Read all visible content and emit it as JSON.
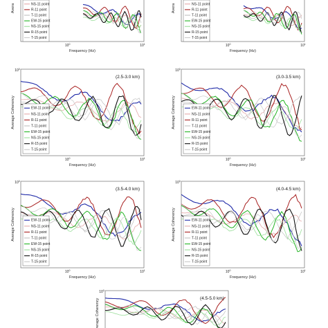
{
  "series_legend": [
    {
      "name": "EW-11 point",
      "color": "#1f2aa8"
    },
    {
      "name": "NS-11 point",
      "color": "#e3a9a9"
    },
    {
      "name": "R-11 point",
      "color": "#a82020"
    },
    {
      "name": "T-11 point",
      "color": "#bfbfbf"
    },
    {
      "name": "EW-15 point",
      "color": "#22b422"
    },
    {
      "name": "NS-15 point",
      "color": "#9adf9a"
    },
    {
      "name": "R-15 point",
      "color": "#111111"
    },
    {
      "name": "T-15 point",
      "color": "#c8c8c8"
    }
  ],
  "common": {
    "xlabel": "Frequency (Hz)",
    "ylabel_full": "Average Coherency",
    "ylabel_cut": "Avera",
    "ytick_top": "10",
    "ytick_top_exp": "0",
    "xtick_mid": "10",
    "xtick_mid_exp": "0",
    "xtick_right": "10",
    "xtick_right_exp": "1"
  },
  "chart_data": [
    {
      "id": "p1",
      "type": "line",
      "range_label": "",
      "x_scale": "log",
      "y_scale": "log",
      "partial": "top-cut"
    },
    {
      "id": "p2",
      "type": "line",
      "range_label": "",
      "x_scale": "log",
      "y_scale": "log",
      "partial": "top-cut"
    },
    {
      "id": "p3",
      "type": "line",
      "range_label": "(2.5-3.0 km)",
      "x_scale": "log",
      "y_scale": "log"
    },
    {
      "id": "p4",
      "type": "line",
      "range_label": "(3.0-3.5 km)",
      "x_scale": "log",
      "y_scale": "log"
    },
    {
      "id": "p5",
      "type": "line",
      "range_label": "(3.5-4.0 km)",
      "x_scale": "log",
      "y_scale": "log"
    },
    {
      "id": "p6",
      "type": "line",
      "range_label": "(4.0-4.5 km)",
      "x_scale": "log",
      "y_scale": "log"
    },
    {
      "id": "p7",
      "type": "line",
      "range_label": "(4.5-5.0 km)",
      "x_scale": "log",
      "y_scale": "log",
      "partial": "bottom-cut"
    }
  ]
}
